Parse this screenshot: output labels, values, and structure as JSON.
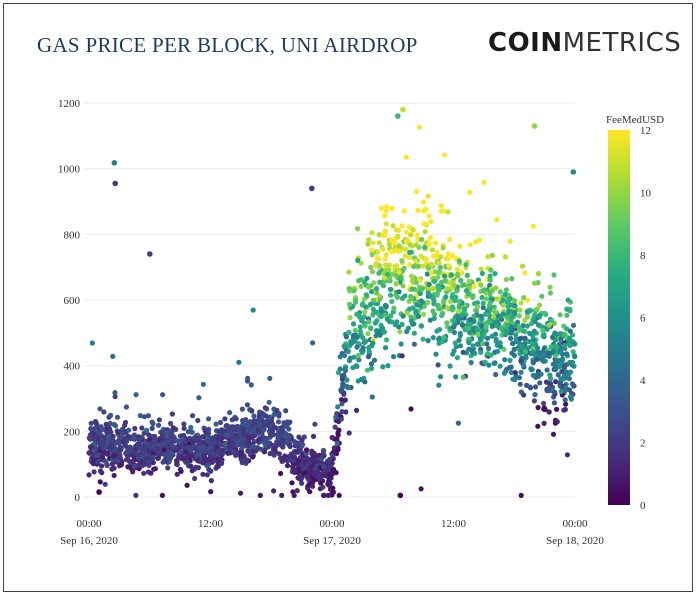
{
  "header": {
    "title": "GAS PRICE PER BLOCK, UNI AIRDROP",
    "brand_bold": "COIN",
    "brand_light": "METRICS"
  },
  "chart_data": {
    "type": "scatter",
    "title": "GAS PRICE PER BLOCK, UNI AIRDROP",
    "xlabel": "",
    "ylabel": "",
    "xlim": [
      "2020-09-16 00:00",
      "2020-09-18 00:00"
    ],
    "ylim": [
      0,
      1200
    ],
    "x_ticks": [
      {
        "label": "00:00",
        "sub": "Sep 16, 2020",
        "hour": 0
      },
      {
        "label": "12:00",
        "sub": "",
        "hour": 12
      },
      {
        "label": "00:00",
        "sub": "Sep 17, 2020",
        "hour": 24
      },
      {
        "label": "12:00",
        "sub": "",
        "hour": 36
      },
      {
        "label": "00:00",
        "sub": "Sep 18, 2020",
        "hour": 48
      }
    ],
    "y_ticks": [
      0,
      200,
      400,
      600,
      800,
      1000,
      1200
    ],
    "colorbar": {
      "title": "FeeMedUSD",
      "range": [
        0,
        12
      ],
      "ticks": [
        0,
        2,
        4,
        6,
        8,
        10,
        12
      ],
      "colorscale": "viridis"
    },
    "notable_points": [
      {
        "time": "2020-09-16 02:30",
        "y": 1018,
        "fee": 5
      },
      {
        "time": "2020-09-16 02:35",
        "y": 955,
        "fee": 2
      },
      {
        "time": "2020-09-16 06:00",
        "y": 740,
        "fee": 2
      },
      {
        "time": "2020-09-16 22:00",
        "y": 940,
        "fee": 2
      },
      {
        "time": "2020-09-17 07:00",
        "y": 1180,
        "fee": 11
      },
      {
        "time": "2020-09-17 06:30",
        "y": 1160,
        "fee": 8
      },
      {
        "time": "2020-09-17 20:00",
        "y": 1130,
        "fee": 10
      },
      {
        "time": "2020-09-17 23:50",
        "y": 990,
        "fee": 6
      },
      {
        "time": "2020-09-17 06:45",
        "y": 5,
        "fee": 0
      },
      {
        "time": "2020-09-16 01:00",
        "y": 15,
        "fee": 0
      }
    ]
  }
}
